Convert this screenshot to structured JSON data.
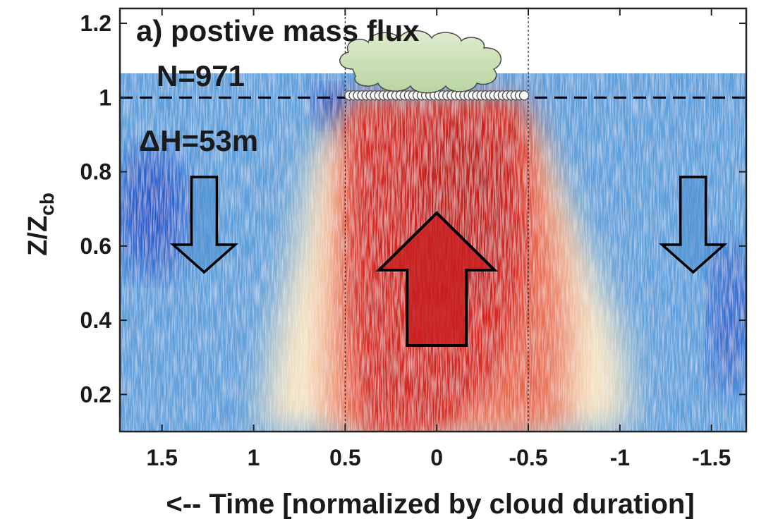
{
  "chart_data": {
    "type": "heatmap",
    "title": "a) postive mass flux",
    "annotations": {
      "count": "N=971",
      "height": "ΔH=53m"
    },
    "xlabel": "<-- Time [normalized by cloud duration]",
    "ylabel_main": "Z/Z",
    "ylabel_sub": "cb",
    "xlim": [
      1.73,
      -1.69
    ],
    "ylim": [
      0.1,
      1.24
    ],
    "x_reversed": true,
    "xticks": [
      1.5,
      1,
      0.5,
      0,
      -0.5,
      -1,
      -1.5
    ],
    "xtick_labels": [
      "1.5",
      "1",
      "0.5",
      "0",
      "-0.5",
      "-1",
      "-1.5"
    ],
    "yticks": [
      0.2,
      0.4,
      0.6,
      0.8,
      1,
      1.2
    ],
    "ytick_labels": [
      "0.2",
      "0.4",
      "0.6",
      "0.8",
      "1",
      "1.2"
    ],
    "cloud_base": 1.0,
    "cloud_edges": [
      0.5,
      -0.5
    ],
    "cloud_top_of_data": 1.07,
    "colors": {
      "updraft": "#d42a22",
      "downdraft": "#2a6fd6",
      "neutral": "#f3ecd5"
    },
    "arrows": [
      {
        "direction": "up",
        "x": 0.0,
        "color": "#c81e1e"
      },
      {
        "direction": "down",
        "x": 1.27,
        "color": "#4d8fd1"
      },
      {
        "direction": "down",
        "x": -1.4,
        "color": "#4d8fd1"
      }
    ]
  }
}
